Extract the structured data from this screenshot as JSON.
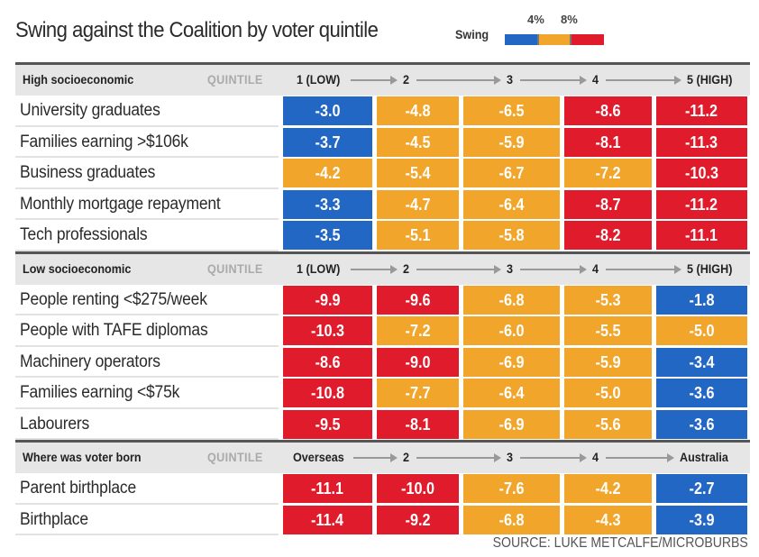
{
  "chart_data": {
    "type": "heatmap",
    "title": "Swing against the Coalition by voter quintile",
    "legend": {
      "label": "Swing",
      "thresholds": [
        "4%",
        "8%"
      ],
      "bins": [
        {
          "name": "under 4%",
          "color": "#2267c4"
        },
        {
          "name": "4% to 8%",
          "color": "#f2a52b"
        },
        {
          "name": "over 8%",
          "color": "#e01b2c"
        }
      ]
    },
    "quintile_label": "QUINTILE",
    "sections": [
      {
        "title": "High socioeconomic",
        "columns": [
          "1 (LOW)",
          "2",
          "3",
          "4",
          "5 (HIGH)"
        ],
        "rows": [
          {
            "label": "University graduates",
            "values": [
              -3.0,
              -4.8,
              -6.5,
              -8.6,
              -11.2
            ],
            "display": [
              "-3.0",
              "-4.8",
              "-6.5",
              "-8.6",
              "-11.2"
            ]
          },
          {
            "label": "Families earning >$106k",
            "values": [
              -3.7,
              -4.5,
              -5.9,
              -8.1,
              -11.3
            ],
            "display": [
              "-3.7",
              "-4.5",
              "-5.9",
              "-8.1",
              "-11.3"
            ]
          },
          {
            "label": "Business graduates",
            "values": [
              -4.2,
              -5.4,
              -6.7,
              -7.2,
              -10.3
            ],
            "display": [
              "-4.2",
              "-5.4",
              "-6.7",
              "-7.2",
              "-10.3"
            ]
          },
          {
            "label": "Monthly mortgage repayment",
            "values": [
              -3.3,
              -4.7,
              -6.4,
              -8.7,
              -11.2
            ],
            "display": [
              "-3.3",
              "-4.7",
              "-6.4",
              "-8.7",
              "-11.2"
            ]
          },
          {
            "label": "Tech professionals",
            "values": [
              -3.5,
              -5.1,
              -5.8,
              -8.2,
              -11.1
            ],
            "display": [
              "-3.5",
              "-5.1",
              "-5.8",
              "-8.2",
              "-11.1"
            ]
          }
        ]
      },
      {
        "title": "Low socioeconomic",
        "columns": [
          "1 (LOW)",
          "2",
          "3",
          "4",
          "5 (HIGH)"
        ],
        "rows": [
          {
            "label": "People renting <$275/week",
            "values": [
              -9.9,
              -9.6,
              -6.8,
              -5.3,
              -1.8
            ],
            "display": [
              "-9.9",
              "-9.6",
              "-6.8",
              "-5.3",
              "-1.8"
            ]
          },
          {
            "label": "People with TAFE diplomas",
            "values": [
              -10.3,
              -7.2,
              -6.0,
              -5.5,
              -5.0
            ],
            "display": [
              "-10.3",
              "-7.2",
              "-6.0",
              "-5.5",
              "-5.0"
            ]
          },
          {
            "label": "Machinery operators",
            "values": [
              -8.6,
              -9.0,
              -6.9,
              -5.9,
              -3.4
            ],
            "display": [
              "-8.6",
              "-9.0",
              "-6.9",
              "-5.9",
              "-3.4"
            ]
          },
          {
            "label": "Families earning <$75k",
            "values": [
              -10.8,
              -7.7,
              -6.4,
              -5.0,
              -3.6
            ],
            "display": [
              "-10.8",
              "-7.7",
              "-6.4",
              "-5.0",
              "-3.6"
            ]
          },
          {
            "label": "Labourers",
            "values": [
              -9.5,
              -8.1,
              -6.9,
              -5.6,
              -3.6
            ],
            "display": [
              "-9.5",
              "-8.1",
              "-6.9",
              "-5.6",
              "-3.6"
            ]
          }
        ]
      },
      {
        "title": "Where was voter born",
        "columns": [
          "Overseas",
          "2",
          "3",
          "4",
          "Australia"
        ],
        "rows": [
          {
            "label": "Parent birthplace",
            "values": [
              -11.1,
              -10.0,
              -7.6,
              -4.2,
              -2.7
            ],
            "display": [
              "-11.1",
              "-10.0",
              "-7.6",
              "-4.2",
              "-2.7"
            ]
          },
          {
            "label": "Birthplace",
            "values": [
              -11.4,
              -9.2,
              -6.8,
              -4.3,
              -3.9
            ],
            "display": [
              "-11.4",
              "-9.2",
              "-6.8",
              "-4.3",
              "-3.9"
            ]
          }
        ]
      }
    ],
    "source": "SOURCE: LUKE METCALFE/MICROBURBS"
  }
}
